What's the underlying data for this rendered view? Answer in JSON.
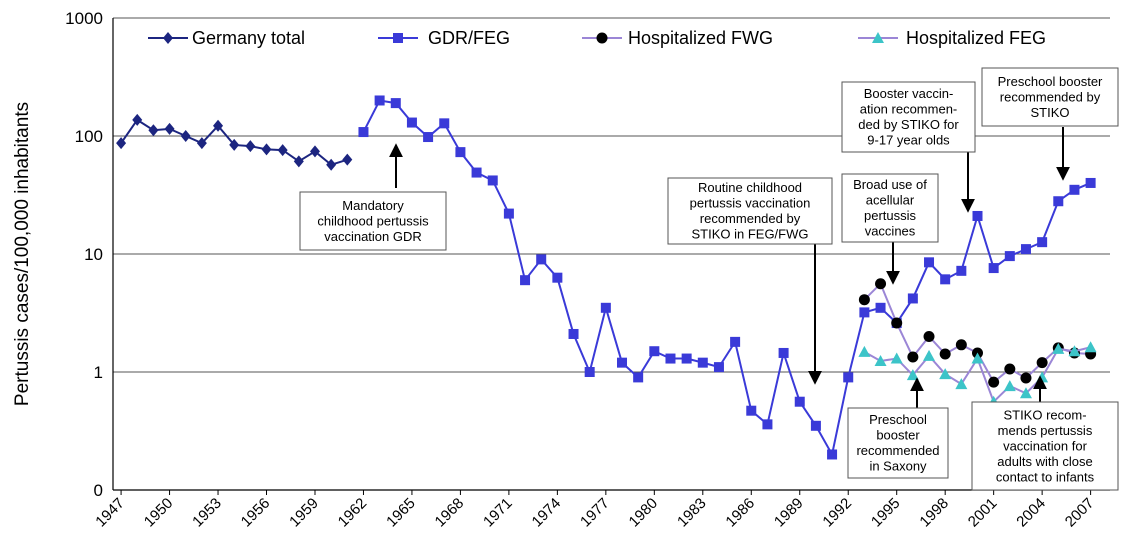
{
  "chart_data": {
    "type": "line",
    "y_label": "Pertussis cases/100,000 inhabitants",
    "log_scale_y": true,
    "grid": true,
    "x": [
      1947,
      1948,
      1949,
      1950,
      1951,
      1952,
      1953,
      1954,
      1955,
      1956,
      1957,
      1958,
      1959,
      1960,
      1961,
      1962,
      1963,
      1964,
      1965,
      1966,
      1967,
      1968,
      1969,
      1970,
      1971,
      1972,
      1973,
      1974,
      1975,
      1976,
      1977,
      1978,
      1979,
      1980,
      1981,
      1982,
      1983,
      1984,
      1985,
      1986,
      1987,
      1988,
      1989,
      1990,
      1991,
      1992,
      1993,
      1994,
      1995,
      1996,
      1997,
      1998,
      1999,
      2000,
      2001,
      2002,
      2003,
      2004,
      2005,
      2006,
      2007
    ],
    "xlim": [
      1946.5,
      2008.2
    ],
    "xticks": [
      1947,
      1950,
      1953,
      1956,
      1959,
      1962,
      1965,
      1968,
      1971,
      1974,
      1977,
      1980,
      1983,
      1986,
      1989,
      1992,
      1995,
      1998,
      2001,
      2004,
      2007
    ],
    "ylim": [
      0.1,
      1000
    ],
    "yticks": [
      {
        "value": 0.1,
        "label": "0"
      },
      1,
      10,
      100,
      1000
    ],
    "series": [
      {
        "name": "Germany total",
        "color": "#1c2580",
        "line_color": "#1c2580",
        "marker": "diamond",
        "values": [
          87,
          137,
          112,
          115,
          100,
          87,
          122,
          84,
          82,
          77,
          76,
          61,
          74,
          57,
          63,
          null,
          null,
          null,
          null,
          null,
          null,
          null,
          null,
          null,
          null,
          null,
          null,
          null,
          null,
          null,
          null,
          null,
          null,
          null,
          null,
          null,
          null,
          null,
          null,
          null,
          null,
          null,
          null,
          null,
          null,
          null,
          null,
          null,
          null,
          null,
          null,
          null,
          null,
          null,
          null,
          null,
          null,
          null,
          null,
          null,
          null
        ]
      },
      {
        "name": "GDR/FEG",
        "color": "#3a3ad8",
        "line_color": "#3a3ad8",
        "marker": "square",
        "values": [
          null,
          null,
          null,
          null,
          null,
          null,
          null,
          null,
          null,
          null,
          null,
          null,
          null,
          null,
          null,
          108,
          200,
          190,
          130,
          98,
          128,
          73,
          49,
          42,
          22,
          6,
          9,
          6.3,
          2.1,
          1,
          3.5,
          1.2,
          0.9,
          1.5,
          1.3,
          1.3,
          1.2,
          1.1,
          1.8,
          0.47,
          0.36,
          1.45,
          0.56,
          0.35,
          0.2,
          0.9,
          3.2,
          3.5,
          2.6,
          4.2,
          8.5,
          6.1,
          7.2,
          21,
          7.6,
          9.6,
          11,
          12.6,
          28,
          35,
          40
        ]
      },
      {
        "name": "Hospitalized FWG",
        "color": "#000000",
        "line_color": "#9b86d6",
        "marker": "circle",
        "values": [
          null,
          null,
          null,
          null,
          null,
          null,
          null,
          null,
          null,
          null,
          null,
          null,
          null,
          null,
          null,
          null,
          null,
          null,
          null,
          null,
          null,
          null,
          null,
          null,
          null,
          null,
          null,
          null,
          null,
          null,
          null,
          null,
          null,
          null,
          null,
          null,
          null,
          null,
          null,
          null,
          null,
          null,
          null,
          null,
          null,
          null,
          4.1,
          5.6,
          2.6,
          1.34,
          2.0,
          1.42,
          1.7,
          1.45,
          0.82,
          1.06,
          0.89,
          1.2,
          1.6,
          1.45,
          1.42
        ]
      },
      {
        "name": "Hospitalized FEG",
        "color": "#3cc4c8",
        "line_color": "#9b86d6",
        "marker": "triangle",
        "values": [
          null,
          null,
          null,
          null,
          null,
          null,
          null,
          null,
          null,
          null,
          null,
          null,
          null,
          null,
          null,
          null,
          null,
          null,
          null,
          null,
          null,
          null,
          null,
          null,
          null,
          null,
          null,
          null,
          null,
          null,
          null,
          null,
          null,
          null,
          null,
          null,
          null,
          null,
          null,
          null,
          null,
          null,
          null,
          null,
          null,
          null,
          1.48,
          1.24,
          1.3,
          0.94,
          1.37,
          0.96,
          0.79,
          1.3,
          0.56,
          0.76,
          0.66,
          0.9,
          1.57,
          1.5,
          1.62
        ]
      }
    ],
    "annotations": [
      {
        "lines": [
          "Mandatory",
          "childhood pertussis",
          "vaccination GDR"
        ]
      },
      {
        "lines": [
          "Routine childhood",
          "pertussis vaccination",
          "recommended by",
          "STIKO in FEG/FWG"
        ]
      },
      {
        "lines": [
          "Booster vaccin-",
          "ation recommen-",
          "ded by STIKO for",
          "9-17 year olds"
        ]
      },
      {
        "lines": [
          "Preschool booster",
          "recommended by",
          "STIKO"
        ]
      },
      {
        "lines": [
          "Broad use of",
          "acellular",
          "pertussis",
          "vaccines"
        ]
      },
      {
        "lines": [
          "Preschool",
          "booster",
          "recommended",
          "in Saxony"
        ]
      },
      {
        "lines": [
          "STIKO recom-",
          "mends pertussis",
          "vaccination  for",
          "adults with close",
          "contact to infants"
        ]
      }
    ]
  }
}
